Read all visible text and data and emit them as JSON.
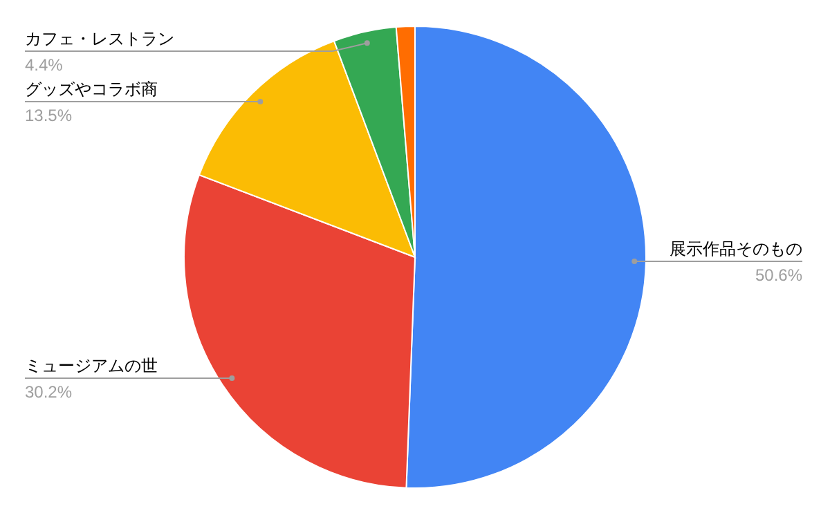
{
  "chart_data": {
    "type": "pie",
    "categories": [
      "展示作品そのもの",
      "ミュージアムの世",
      "グッズやコラボ商",
      "カフェ・レストラン",
      null
    ],
    "values": [
      50.6,
      30.2,
      13.5,
      4.4,
      1.3
    ],
    "value_labels": [
      "50.6%",
      "30.2%",
      "13.5%",
      "4.4%",
      null
    ],
    "colors": [
      "#4285f4",
      "#ea4335",
      "#fbbc04",
      "#34a853",
      "#ff6d01"
    ]
  }
}
